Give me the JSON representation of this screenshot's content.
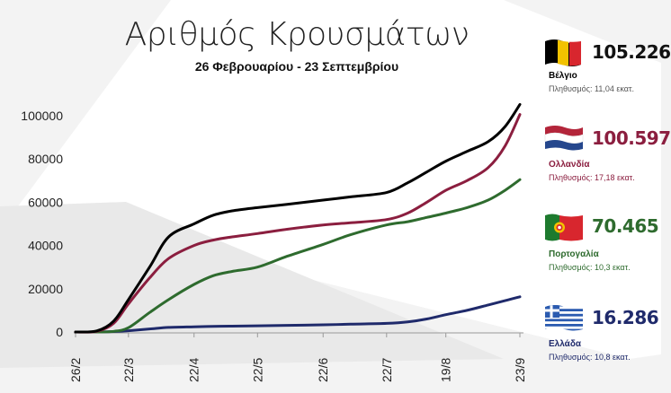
{
  "header": {
    "title": "Αριθμός Κρουσμάτων",
    "subtitle": "26 Φεβρουαρίου - 23 Σεπτεμβρίου"
  },
  "countries": [
    {
      "name": "Βέλγιο",
      "value": "105.226",
      "population": "Πληθυσμός: 11,04 εκατ.",
      "color": "#000000",
      "flag_icon": "belgium-flag-icon"
    },
    {
      "name": "Ολλανδία",
      "value": "100.597",
      "population": "Πληθυσμός: 17,18 εκατ.",
      "color": "#8b1e3f",
      "flag_icon": "netherlands-flag-icon"
    },
    {
      "name": "Πορτογαλία",
      "value": "70.465",
      "population": "Πληθυσμός: 10,3 εκατ.",
      "color": "#2e6b2e",
      "flag_icon": "portugal-flag-icon"
    },
    {
      "name": "Ελλάδα",
      "value": "16.286",
      "population": "Πληθυσμός: 10,8 εκατ.",
      "color": "#1f2a6b",
      "flag_icon": "greece-flag-icon"
    }
  ],
  "chart_data": {
    "type": "line",
    "title": "Αριθμός Κρουσμάτων",
    "subtitle": "26 Φεβρουαρίου - 23 Σεπτεμβρίου",
    "x_ticks": [
      "26/2",
      "22/3",
      "22/4",
      "22/5",
      "22/6",
      "22/7",
      "19/8",
      "23/9"
    ],
    "y_ticks": [
      "0",
      "20000",
      "40000",
      "60000",
      "80000",
      "100000"
    ],
    "ylim": [
      0,
      110000
    ],
    "x": [
      "2020-02-26",
      "2020-03-07",
      "2020-03-15",
      "2020-03-22",
      "2020-04-01",
      "2020-04-10",
      "2020-04-22",
      "2020-05-01",
      "2020-05-10",
      "2020-05-22",
      "2020-06-05",
      "2020-06-22",
      "2020-07-05",
      "2020-07-22",
      "2020-08-01",
      "2020-08-10",
      "2020-08-19",
      "2020-08-29",
      "2020-09-08",
      "2020-09-16",
      "2020-09-23"
    ],
    "series": [
      {
        "name": "Βέλγιο",
        "color": "#000000",
        "values": [
          0,
          500,
          5000,
          15000,
          30000,
          44000,
          50000,
          54000,
          56000,
          57500,
          59000,
          61000,
          62500,
          64500,
          69000,
          74000,
          79000,
          83500,
          88000,
          95000,
          105226
        ]
      },
      {
        "name": "Ολλανδία",
        "color": "#8b1e3f",
        "values": [
          0,
          300,
          4000,
          13000,
          25000,
          34000,
          40000,
          42500,
          44000,
          45500,
          47500,
          49500,
          50500,
          52000,
          55000,
          60000,
          65500,
          70000,
          76000,
          86000,
          100597
        ]
      },
      {
        "name": "Πορτογαλία",
        "color": "#2e6b2e",
        "values": [
          0,
          0,
          300,
          2000,
          9000,
          15000,
          22000,
          26000,
          28000,
          30000,
          35000,
          40500,
          45000,
          49500,
          51000,
          53000,
          55000,
          57500,
          61000,
          65500,
          70465
        ]
      },
      {
        "name": "Ελλάδα",
        "color": "#1f2a6b",
        "values": [
          0,
          30,
          200,
          600,
          1400,
          2100,
          2400,
          2600,
          2700,
          2850,
          3050,
          3300,
          3600,
          4000,
          4700,
          6000,
          8000,
          10000,
          12500,
          14500,
          16286
        ]
      }
    ]
  }
}
